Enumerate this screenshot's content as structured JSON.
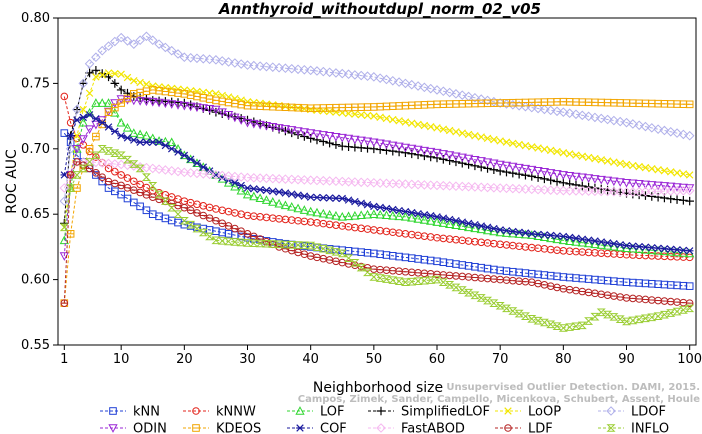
{
  "chart_data": {
    "type": "line",
    "title": "Annthyroid_withoutdupl_norm_02_v05",
    "xlabel": "Neighborhood size",
    "ylabel": "ROC AUC",
    "xlim": [
      0,
      101
    ],
    "ylim": [
      0.55,
      0.8
    ],
    "xticks": [
      1,
      10,
      20,
      30,
      40,
      50,
      60,
      70,
      80,
      90,
      100
    ],
    "yticks": [
      0.55,
      0.6,
      0.65,
      0.7,
      0.75,
      0.8
    ],
    "xtick_labels": [
      "1",
      "10",
      "20",
      "30",
      "40",
      "50",
      "60",
      "70",
      "80",
      "90",
      "100"
    ],
    "ytick_labels": [
      "0.55",
      "0.60",
      "0.65",
      "0.70",
      "0.75",
      "0.80"
    ],
    "grid": false,
    "legend_position": "bottom",
    "series": [
      {
        "name": "kNN",
        "color": "#1f3fd6",
        "marker": "square",
        "dashed": true,
        "points": [
          [
            1,
            0.712
          ],
          [
            2,
            0.705
          ],
          [
            3,
            0.695
          ],
          [
            5,
            0.685
          ],
          [
            8,
            0.67
          ],
          [
            10,
            0.665
          ],
          [
            15,
            0.65
          ],
          [
            20,
            0.642
          ],
          [
            25,
            0.637
          ],
          [
            30,
            0.632
          ],
          [
            35,
            0.628
          ],
          [
            40,
            0.625
          ],
          [
            50,
            0.62
          ],
          [
            60,
            0.614
          ],
          [
            70,
            0.607
          ],
          [
            80,
            0.602
          ],
          [
            90,
            0.598
          ],
          [
            100,
            0.595
          ]
        ]
      },
      {
        "name": "kNNW",
        "color": "#e3231b",
        "marker": "circle",
        "dashed": true,
        "points": [
          [
            1,
            0.74
          ],
          [
            2,
            0.72
          ],
          [
            3,
            0.708
          ],
          [
            5,
            0.698
          ],
          [
            8,
            0.685
          ],
          [
            10,
            0.68
          ],
          [
            15,
            0.668
          ],
          [
            20,
            0.66
          ],
          [
            25,
            0.654
          ],
          [
            30,
            0.649
          ],
          [
            40,
            0.644
          ],
          [
            50,
            0.638
          ],
          [
            60,
            0.632
          ],
          [
            70,
            0.627
          ],
          [
            80,
            0.622
          ],
          [
            90,
            0.619
          ],
          [
            100,
            0.617
          ]
        ]
      },
      {
        "name": "LOF",
        "color": "#2fd62f",
        "marker": "triangle",
        "dashed": true,
        "points": [
          [
            1,
            0.63
          ],
          [
            2,
            0.67
          ],
          [
            3,
            0.7
          ],
          [
            4,
            0.72
          ],
          [
            6,
            0.735
          ],
          [
            8,
            0.735
          ],
          [
            10,
            0.72
          ],
          [
            12,
            0.712
          ],
          [
            14,
            0.71
          ],
          [
            16,
            0.706
          ],
          [
            18,
            0.705
          ],
          [
            20,
            0.695
          ],
          [
            25,
            0.68
          ],
          [
            30,
            0.665
          ],
          [
            35,
            0.658
          ],
          [
            40,
            0.652
          ],
          [
            45,
            0.648
          ],
          [
            50,
            0.65
          ],
          [
            55,
            0.648
          ],
          [
            60,
            0.644
          ],
          [
            65,
            0.64
          ],
          [
            70,
            0.636
          ],
          [
            75,
            0.634
          ],
          [
            80,
            0.63
          ],
          [
            90,
            0.624
          ],
          [
            100,
            0.62
          ]
        ]
      },
      {
        "name": "SimplifiedLOF",
        "color": "#000000",
        "marker": "plus",
        "dashed": true,
        "points": [
          [
            1,
            0.643
          ],
          [
            2,
            0.71
          ],
          [
            3,
            0.73
          ],
          [
            4,
            0.75
          ],
          [
            5,
            0.758
          ],
          [
            6,
            0.76
          ],
          [
            8,
            0.755
          ],
          [
            10,
            0.745
          ],
          [
            12,
            0.74
          ],
          [
            15,
            0.737
          ],
          [
            20,
            0.735
          ],
          [
            25,
            0.728
          ],
          [
            30,
            0.722
          ],
          [
            35,
            0.715
          ],
          [
            40,
            0.708
          ],
          [
            45,
            0.702
          ],
          [
            50,
            0.7
          ],
          [
            55,
            0.697
          ],
          [
            60,
            0.693
          ],
          [
            65,
            0.688
          ],
          [
            70,
            0.683
          ],
          [
            75,
            0.679
          ],
          [
            80,
            0.674
          ],
          [
            90,
            0.666
          ],
          [
            100,
            0.66
          ]
        ]
      },
      {
        "name": "LoOP",
        "color": "#f2e600",
        "marker": "x",
        "dashed": true,
        "points": [
          [
            1,
            0.64
          ],
          [
            2,
            0.68
          ],
          [
            3,
            0.71
          ],
          [
            4,
            0.73
          ],
          [
            6,
            0.755
          ],
          [
            8,
            0.758
          ],
          [
            10,
            0.757
          ],
          [
            12,
            0.752
          ],
          [
            15,
            0.748
          ],
          [
            20,
            0.745
          ],
          [
            25,
            0.742
          ],
          [
            30,
            0.736
          ],
          [
            40,
            0.73
          ],
          [
            50,
            0.725
          ],
          [
            60,
            0.716
          ],
          [
            70,
            0.706
          ],
          [
            80,
            0.697
          ],
          [
            90,
            0.688
          ],
          [
            100,
            0.68
          ]
        ]
      },
      {
        "name": "LDOF",
        "color": "#b0b0ea",
        "marker": "diamond",
        "dashed": true,
        "points": [
          [
            1,
            0.66
          ],
          [
            2,
            0.7
          ],
          [
            3,
            0.73
          ],
          [
            4,
            0.75
          ],
          [
            5,
            0.765
          ],
          [
            7,
            0.775
          ],
          [
            9,
            0.782
          ],
          [
            10,
            0.785
          ],
          [
            12,
            0.78
          ],
          [
            14,
            0.786
          ],
          [
            16,
            0.78
          ],
          [
            20,
            0.77
          ],
          [
            25,
            0.768
          ],
          [
            30,
            0.764
          ],
          [
            40,
            0.76
          ],
          [
            50,
            0.755
          ],
          [
            60,
            0.745
          ],
          [
            70,
            0.735
          ],
          [
            80,
            0.728
          ],
          [
            90,
            0.72
          ],
          [
            100,
            0.71
          ]
        ]
      },
      {
        "name": "ODIN",
        "color": "#9a26d6",
        "marker": "triangle-down",
        "dashed": true,
        "points": [
          [
            1,
            0.618
          ],
          [
            2,
            0.68
          ],
          [
            3,
            0.7
          ],
          [
            5,
            0.715
          ],
          [
            7,
            0.722
          ],
          [
            9,
            0.735
          ],
          [
            10,
            0.738
          ],
          [
            12,
            0.737
          ],
          [
            15,
            0.736
          ],
          [
            20,
            0.733
          ],
          [
            25,
            0.73
          ],
          [
            30,
            0.72
          ],
          [
            40,
            0.712
          ],
          [
            50,
            0.705
          ],
          [
            60,
            0.697
          ],
          [
            70,
            0.688
          ],
          [
            80,
            0.68
          ],
          [
            90,
            0.674
          ],
          [
            100,
            0.67
          ]
        ]
      },
      {
        "name": "KDEOS",
        "color": "#f2a500",
        "marker": "boxed-square",
        "dashed": true,
        "points": [
          [
            1,
            0.582
          ],
          [
            2,
            0.635
          ],
          [
            3,
            0.67
          ],
          [
            5,
            0.7
          ],
          [
            8,
            0.728
          ],
          [
            10,
            0.735
          ],
          [
            12,
            0.742
          ],
          [
            15,
            0.745
          ],
          [
            20,
            0.742
          ],
          [
            25,
            0.737
          ],
          [
            30,
            0.733
          ],
          [
            40,
            0.731
          ],
          [
            50,
            0.732
          ],
          [
            60,
            0.734
          ],
          [
            70,
            0.735
          ],
          [
            80,
            0.736
          ],
          [
            90,
            0.735
          ],
          [
            100,
            0.734
          ]
        ]
      },
      {
        "name": "COF",
        "color": "#1a1a9e",
        "marker": "star",
        "dashed": true,
        "points": [
          [
            1,
            0.68
          ],
          [
            2,
            0.71
          ],
          [
            3,
            0.722
          ],
          [
            5,
            0.726
          ],
          [
            7,
            0.72
          ],
          [
            10,
            0.71
          ],
          [
            13,
            0.705
          ],
          [
            16,
            0.705
          ],
          [
            20,
            0.695
          ],
          [
            25,
            0.68
          ],
          [
            30,
            0.67
          ],
          [
            35,
            0.667
          ],
          [
            40,
            0.663
          ],
          [
            45,
            0.662
          ],
          [
            50,
            0.656
          ],
          [
            55,
            0.652
          ],
          [
            60,
            0.648
          ],
          [
            65,
            0.643
          ],
          [
            70,
            0.638
          ],
          [
            75,
            0.635
          ],
          [
            80,
            0.633
          ],
          [
            90,
            0.626
          ],
          [
            100,
            0.622
          ]
        ]
      },
      {
        "name": "FastABOD",
        "color": "#f5b8f0",
        "marker": "diamond",
        "dashed": true,
        "points": [
          [
            1,
            0.67
          ],
          [
            3,
            0.69
          ],
          [
            5,
            0.69
          ],
          [
            10,
            0.688
          ],
          [
            15,
            0.685
          ],
          [
            20,
            0.682
          ],
          [
            30,
            0.678
          ],
          [
            40,
            0.676
          ],
          [
            50,
            0.674
          ],
          [
            60,
            0.672
          ],
          [
            70,
            0.67
          ],
          [
            80,
            0.668
          ],
          [
            90,
            0.667
          ],
          [
            100,
            0.668
          ]
        ]
      },
      {
        "name": "LDF",
        "color": "#b52323",
        "marker": "circle-bar",
        "dashed": true,
        "points": [
          [
            1,
            0.582
          ],
          [
            2,
            0.68
          ],
          [
            3,
            0.69
          ],
          [
            5,
            0.685
          ],
          [
            8,
            0.675
          ],
          [
            10,
            0.672
          ],
          [
            15,
            0.663
          ],
          [
            20,
            0.655
          ],
          [
            25,
            0.645
          ],
          [
            30,
            0.635
          ],
          [
            35,
            0.625
          ],
          [
            40,
            0.618
          ],
          [
            45,
            0.613
          ],
          [
            50,
            0.608
          ],
          [
            55,
            0.606
          ],
          [
            60,
            0.604
          ],
          [
            65,
            0.602
          ],
          [
            70,
            0.6
          ],
          [
            75,
            0.598
          ],
          [
            80,
            0.593
          ],
          [
            90,
            0.586
          ],
          [
            100,
            0.582
          ]
        ]
      },
      {
        "name": "INFLO",
        "color": "#9acd32",
        "marker": "hourglass",
        "dashed": true,
        "points": [
          [
            1,
            0.64
          ],
          [
            2,
            0.67
          ],
          [
            3,
            0.68
          ],
          [
            5,
            0.69
          ],
          [
            7,
            0.7
          ],
          [
            10,
            0.695
          ],
          [
            13,
            0.685
          ],
          [
            16,
            0.665
          ],
          [
            20,
            0.645
          ],
          [
            25,
            0.63
          ],
          [
            30,
            0.628
          ],
          [
            35,
            0.627
          ],
          [
            40,
            0.626
          ],
          [
            45,
            0.62
          ],
          [
            50,
            0.602
          ],
          [
            55,
            0.598
          ],
          [
            60,
            0.6
          ],
          [
            65,
            0.59
          ],
          [
            70,
            0.58
          ],
          [
            75,
            0.57
          ],
          [
            80,
            0.563
          ],
          [
            83,
            0.565
          ],
          [
            86,
            0.575
          ],
          [
            90,
            0.568
          ],
          [
            95,
            0.572
          ],
          [
            100,
            0.578
          ]
        ]
      }
    ]
  },
  "watermark": {
    "line1": "Unsupervised Outlier Detection. DAMI, 2015.",
    "line2": "Campos, Zimek, Sander, Campello, Micenkova, Schubert, Assent, Houle"
  }
}
